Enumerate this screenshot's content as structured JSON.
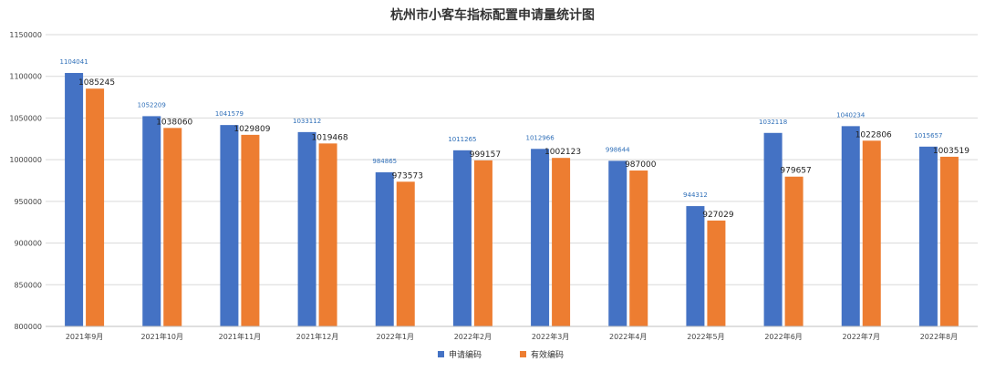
{
  "chart_data": {
    "type": "bar",
    "title": "杭州市小客车指标配置申请量统计图",
    "categories": [
      "2021年9月",
      "2021年10月",
      "2021年11月",
      "2021年12月",
      "2022年1月",
      "2022年2月",
      "2022年3月",
      "2022年4月",
      "2022年5月",
      "2022年6月",
      "2022年7月",
      "2022年8月"
    ],
    "series": [
      {
        "name": "申请编码",
        "color": "#4472c4",
        "values": [
          1104041,
          1052209,
          1041579,
          1033112,
          984865,
          1011265,
          1012966,
          998644,
          944312,
          1032118,
          1040234,
          1015657
        ]
      },
      {
        "name": "有效编码",
        "color": "#ed7d31",
        "values": [
          1085245,
          1038060,
          1029809,
          1019468,
          973573,
          999157,
          1002123,
          987000,
          927029,
          979657,
          1022806,
          1003519
        ]
      }
    ],
    "yticks": [
      "800000",
      "850000",
      "900000",
      "950000",
      "1000000",
      "1050000",
      "1100000",
      "1150000"
    ],
    "ylim": [
      800000,
      1150000
    ],
    "xlabel": "",
    "ylabel": "",
    "grid": true,
    "legend_position": "bottom-center"
  }
}
